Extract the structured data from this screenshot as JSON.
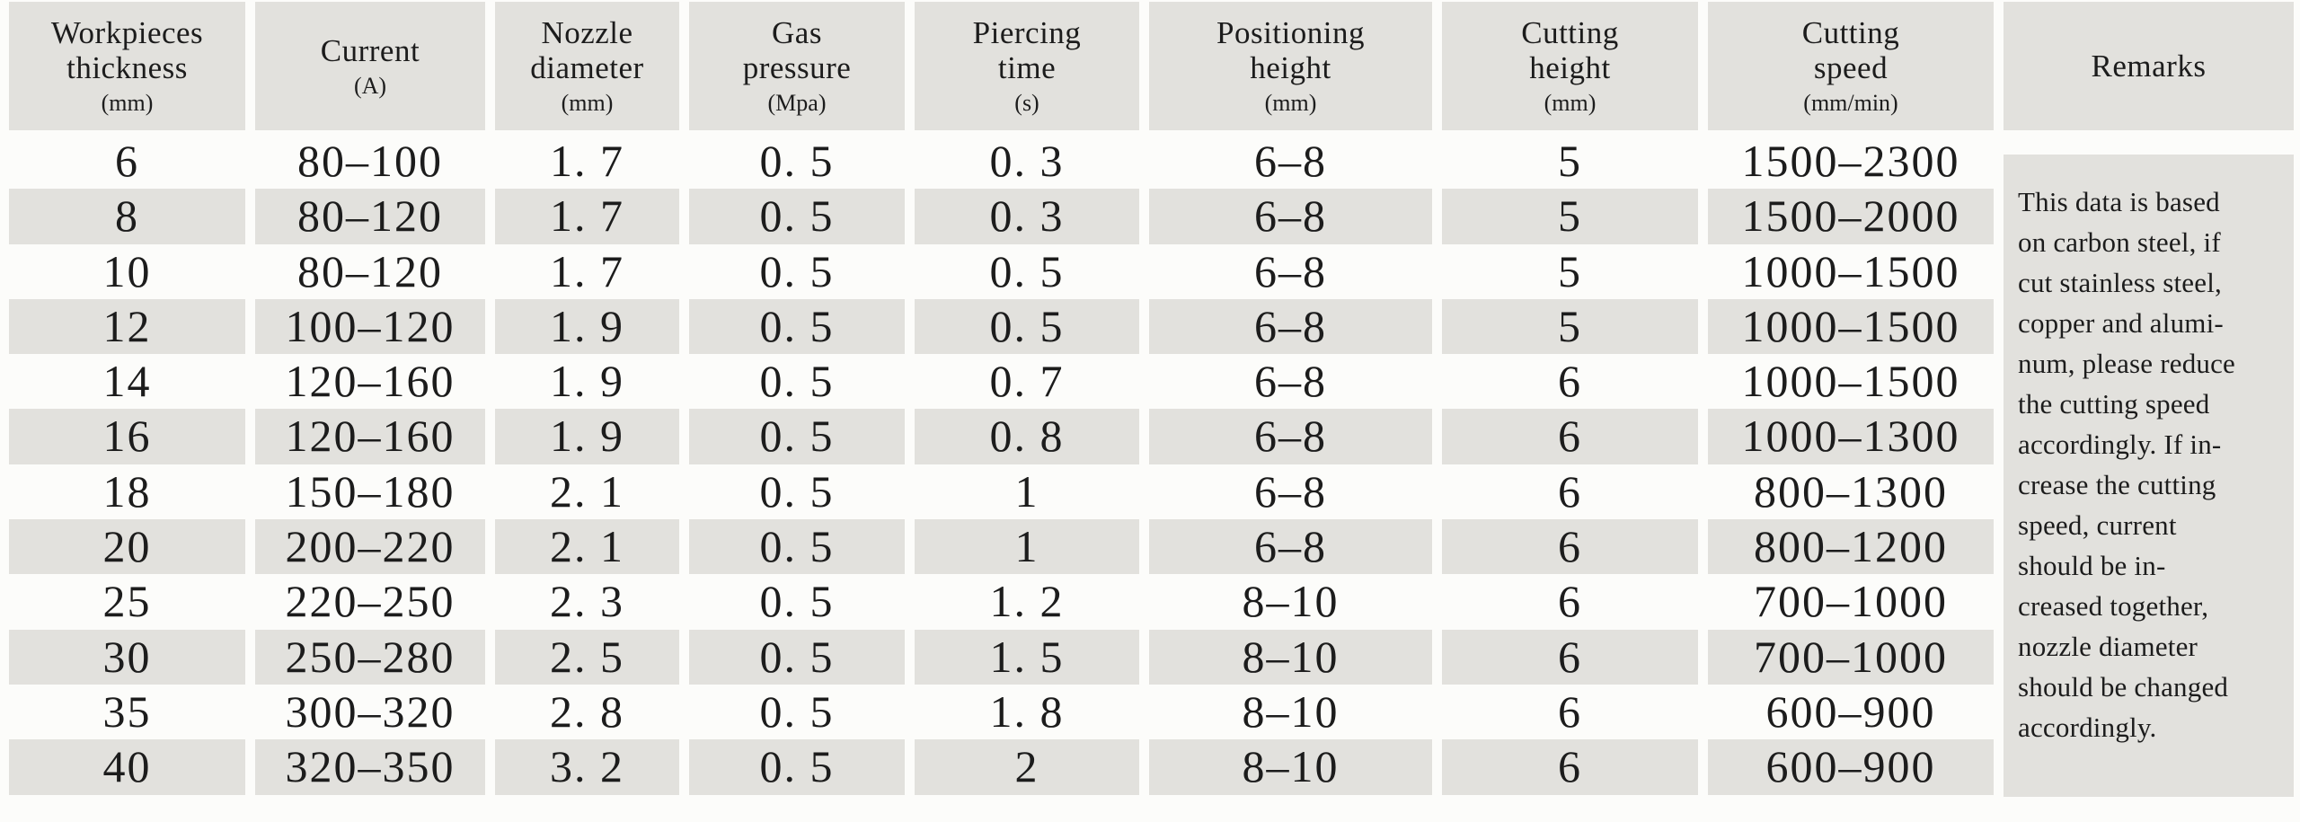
{
  "table": {
    "columns": [
      {
        "label_lines": [
          "Workpieces",
          "thickness"
        ],
        "label": "Workpieces thickness",
        "unit": "(mm)"
      },
      {
        "label_lines": [
          "Current"
        ],
        "label": "Current",
        "unit": "(A)"
      },
      {
        "label_lines": [
          "Nozzle",
          "diameter"
        ],
        "label": "Nozzle diameter",
        "unit": "(mm)"
      },
      {
        "label_lines": [
          "Gas",
          "pressure"
        ],
        "label": "Gas pressure",
        "unit": "(Mpa)"
      },
      {
        "label_lines": [
          "Piercing",
          "time"
        ],
        "label": "Piercing time",
        "unit": "(s)"
      },
      {
        "label_lines": [
          "Positioning",
          "height"
        ],
        "label": "Positioning height",
        "unit": "(mm)"
      },
      {
        "label_lines": [
          "Cutting",
          "height"
        ],
        "label": "Cutting height",
        "unit": "(mm)"
      },
      {
        "label_lines": [
          "Cutting",
          "speed"
        ],
        "label": "Cutting speed",
        "unit": "(mm/min)"
      },
      {
        "label_lines": [
          "Remarks"
        ],
        "label": "Remarks",
        "unit": ""
      }
    ],
    "rows": [
      [
        "6",
        "80–100",
        "1. 7",
        "0. 5",
        "0. 3",
        "6–8",
        "5",
        "1500–2300"
      ],
      [
        "8",
        "80–120",
        "1. 7",
        "0. 5",
        "0. 3",
        "6–8",
        "5",
        "1500–2000"
      ],
      [
        "10",
        "80–120",
        "1. 7",
        "0. 5",
        "0. 5",
        "6–8",
        "5",
        "1000–1500"
      ],
      [
        "12",
        "100–120",
        "1. 9",
        "0. 5",
        "0. 5",
        "6–8",
        "5",
        "1000–1500"
      ],
      [
        "14",
        "120–160",
        "1. 9",
        "0. 5",
        "0. 7",
        "6–8",
        "6",
        "1000–1500"
      ],
      [
        "16",
        "120–160",
        "1. 9",
        "0. 5",
        "0. 8",
        "6–8",
        "6",
        "1000–1300"
      ],
      [
        "18",
        "150–180",
        "2. 1",
        "0. 5",
        "1",
        "6–8",
        "6",
        "800–1300"
      ],
      [
        "20",
        "200–220",
        "2. 1",
        "0. 5",
        "1",
        "6–8",
        "6",
        "800–1200"
      ],
      [
        "25",
        "220–250",
        "2. 3",
        "0. 5",
        "1. 2",
        "8–10",
        "6",
        "700–1000"
      ],
      [
        "30",
        "250–280",
        "2. 5",
        "0. 5",
        "1. 5",
        "8–10",
        "6",
        "700–1000"
      ],
      [
        "35",
        "300–320",
        "2. 8",
        "0. 5",
        "1. 8",
        "8–10",
        "6",
        "600–900"
      ],
      [
        "40",
        "320–350",
        "3. 2",
        "0. 5",
        "2",
        "8–10",
        "6",
        "600–900"
      ]
    ],
    "remarks_lines": [
      "This data is based",
      "on carbon steel, if",
      "cut stainless steel,",
      "copper and alumi-",
      "num, please reduce",
      "the cutting speed",
      "accordingly. If in-",
      "crease the cutting",
      "speed, current",
      "should be in-",
      "creased together,",
      "nozzle diameter",
      "should be changed",
      "accordingly."
    ],
    "remarks_text": "This data is based on carbon steel, if cut stainless steel, copper and aluminum, please reduce the cutting speed accordingly. If increase the cutting speed, current should be increased together, nozzle diameter should be changed accordingly.",
    "colors": {
      "cell_gray": "#e2e1dd",
      "background": "#fcfcfa",
      "text": "#1c1c1c"
    }
  }
}
